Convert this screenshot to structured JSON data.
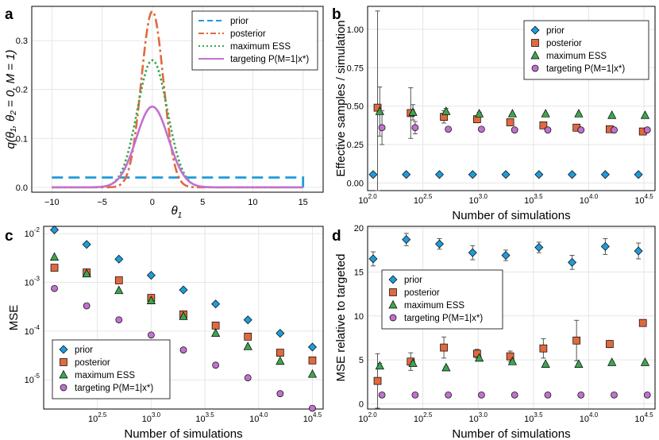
{
  "colors": {
    "prior": "#1f9bd9",
    "posterior": "#e0693f",
    "max_ess": "#3ca64f",
    "targeting": "#c171cf",
    "errorbar": "#555555"
  },
  "chart_data": [
    {
      "id": "a",
      "panel_label": "a",
      "type": "line",
      "xlabel": "θ",
      "xlabel_sub": "1",
      "ylabel": "q(θ₁, θ₂ = 0, M = 1)",
      "xlim": [
        -12,
        17
      ],
      "ylim": [
        -0.01,
        0.37
      ],
      "xticks": [
        -10,
        -5,
        0,
        5,
        10,
        15
      ],
      "xtick_labels": [
        "−10",
        "−5",
        "0",
        "5",
        "10",
        "15"
      ],
      "yticks": [
        0.0,
        0.1,
        0.2,
        0.3
      ],
      "ytick_labels": [
        "0.0",
        "0.1",
        "0.2",
        "0.3"
      ],
      "legend_position": "top-right",
      "series": [
        {
          "name": "prior",
          "shape": "uniform",
          "low": -10,
          "high": 15,
          "density": 0.02,
          "style": "dashed"
        },
        {
          "name": "posterior",
          "shape": "gaussian",
          "mean": 0,
          "sd": 1.1,
          "peak": 0.36,
          "style": "dashdot"
        },
        {
          "name": "maximum ESS",
          "shape": "gaussian",
          "mean": 0,
          "sd": 1.5,
          "peak": 0.26,
          "style": "dotted"
        },
        {
          "name": "targeting P(M=1|x*)",
          "shape": "gaussian",
          "mean": 0,
          "sd": 1.6,
          "peak": 0.165,
          "style": "solid"
        }
      ]
    },
    {
      "id": "b",
      "panel_label": "b",
      "type": "scatter",
      "xscale": "log10",
      "xlabel": "Number of simulations",
      "ylabel": "Effective samples / simulation",
      "xlim": [
        2.0,
        4.6
      ],
      "ylim": [
        -0.05,
        1.15
      ],
      "xticks": [
        2.0,
        2.5,
        3.0,
        3.5,
        4.0,
        4.5
      ],
      "xtick_labels": [
        "2.0",
        "2.5",
        "3.0",
        "3.5",
        "4.0",
        "4.5"
      ],
      "yticks": [
        0.0,
        0.25,
        0.5,
        0.75,
        1.0
      ],
      "ytick_labels": [
        "0.00",
        "0.25",
        "0.50",
        "0.75",
        "1.00"
      ],
      "legend_position": "top-right",
      "series": [
        {
          "name": "prior",
          "marker": "diamond",
          "x": [
            2.05,
            2.35,
            2.65,
            2.95,
            3.25,
            3.55,
            3.85,
            4.15,
            4.45
          ],
          "y": [
            0.055,
            0.055,
            0.055,
            0.055,
            0.055,
            0.055,
            0.055,
            0.055,
            0.055
          ],
          "err": [
            0,
            0,
            0,
            0,
            0,
            0,
            0,
            0,
            0
          ]
        },
        {
          "name": "posterior",
          "marker": "square",
          "x": [
            2.09,
            2.39,
            2.69,
            2.99,
            3.29,
            3.59,
            3.89,
            4.19,
            4.49
          ],
          "y": [
            0.49,
            0.455,
            0.43,
            0.415,
            0.395,
            0.375,
            0.36,
            0.35,
            0.335
          ],
          "err": [
            0.63,
            0.165,
            0.04,
            0.02,
            0.01,
            0.01,
            0.01,
            0.01,
            0.01
          ]
        },
        {
          "name": "maximum ESS",
          "marker": "triangle",
          "x": [
            2.11,
            2.41,
            2.71,
            3.01,
            3.31,
            3.61,
            3.91,
            4.21,
            4.51
          ],
          "y": [
            0.465,
            0.46,
            0.465,
            0.45,
            0.45,
            0.45,
            0.45,
            0.44,
            0.44
          ],
          "err": [
            0.16,
            0.05,
            0.02,
            0.01,
            0,
            0,
            0,
            0,
            0
          ]
        },
        {
          "name": "targeting P(M=1|x*)",
          "marker": "circle",
          "x": [
            2.13,
            2.43,
            2.73,
            3.03,
            3.33,
            3.63,
            3.93,
            4.23,
            4.53
          ],
          "y": [
            0.36,
            0.36,
            0.35,
            0.35,
            0.345,
            0.345,
            0.345,
            0.345,
            0.345
          ],
          "err": [
            0.11,
            0.04,
            0.01,
            0,
            0,
            0,
            0,
            0,
            0
          ]
        }
      ]
    },
    {
      "id": "c",
      "panel_label": "c",
      "type": "scatter",
      "xscale": "log10",
      "yscale": "log10",
      "xlabel": "Number of simulations",
      "ylabel": "MSE",
      "xlim": [
        2.0,
        4.6
      ],
      "ylim": [
        -5.6,
        -1.85
      ],
      "xticks": [
        2.5,
        3.0,
        3.5,
        4.0,
        4.5
      ],
      "xtick_labels": [
        "2.5",
        "3.0",
        "3.5",
        "4.0",
        "4.5"
      ],
      "yticks": [
        -5,
        -4,
        -3,
        -2
      ],
      "ytick_labels": [
        "-5",
        "-4",
        "-3",
        "-2"
      ],
      "legend_position": "bottom-left",
      "series": [
        {
          "name": "prior",
          "marker": "diamond",
          "x": [
            2.1,
            2.4,
            2.7,
            3.0,
            3.3,
            3.6,
            3.9,
            4.2,
            4.5
          ],
          "y": [
            0.012,
            0.006,
            0.003,
            0.0014,
            0.0007,
            0.00036,
            0.00017,
            9e-05,
            4.7e-05
          ]
        },
        {
          "name": "posterior",
          "marker": "square",
          "x": [
            2.1,
            2.4,
            2.7,
            3.0,
            3.3,
            3.6,
            3.9,
            4.2,
            4.5
          ],
          "y": [
            0.002,
            0.0016,
            0.0011,
            0.00048,
            0.00022,
            0.00013,
            7.7e-05,
            3.6e-05,
            2.5e-05
          ]
        },
        {
          "name": "maximum ESS",
          "marker": "triangle",
          "x": [
            2.1,
            2.4,
            2.7,
            3.0,
            3.3,
            3.6,
            3.9,
            4.2,
            4.5
          ],
          "y": [
            0.0033,
            0.0015,
            0.00068,
            0.00042,
            0.0002,
            9e-05,
            4.8e-05,
            2.4e-05,
            1.3e-05
          ]
        },
        {
          "name": "targeting P(M=1|x*)",
          "marker": "circle",
          "x": [
            2.1,
            2.4,
            2.7,
            3.0,
            3.3,
            3.6,
            3.9,
            4.2,
            4.5
          ],
          "y": [
            0.00075,
            0.00033,
            0.00017,
            8.3e-05,
            4.1e-05,
            2e-05,
            1.1e-05,
            5.2e-06,
            2.6e-06
          ]
        }
      ]
    },
    {
      "id": "d",
      "panel_label": "d",
      "type": "scatter",
      "xscale": "log10",
      "xlabel": "Number of simulations",
      "ylabel": "MSE relative to targeted",
      "xlim": [
        2.0,
        4.6
      ],
      "ylim": [
        -0.6,
        20.2
      ],
      "xticks": [
        2.0,
        2.5,
        3.0,
        3.5,
        4.0,
        4.5
      ],
      "xtick_labels": [
        "2.0",
        "2.5",
        "3.0",
        "3.5",
        "4.0",
        "4.5"
      ],
      "yticks": [
        0,
        5,
        10,
        15,
        20
      ],
      "ytick_labels": [
        "0",
        "5",
        "10",
        "15",
        "20"
      ],
      "legend_position": "middle-left",
      "series": [
        {
          "name": "prior",
          "marker": "diamond",
          "x": [
            2.05,
            2.35,
            2.65,
            2.95,
            3.25,
            3.55,
            3.85,
            4.15,
            4.45
          ],
          "y": [
            16.5,
            18.7,
            18.2,
            17.2,
            16.9,
            17.8,
            16.1,
            17.9,
            17.4
          ],
          "err": [
            0.8,
            0.7,
            0.6,
            0.8,
            0.6,
            0.6,
            0.8,
            0.9,
            0.9
          ]
        },
        {
          "name": "posterior",
          "marker": "square",
          "x": [
            2.09,
            2.39,
            2.69,
            2.99,
            3.29,
            3.59,
            3.89,
            4.19,
            4.49
          ],
          "y": [
            2.6,
            4.8,
            6.4,
            5.7,
            5.4,
            6.3,
            7.2,
            6.8,
            9.2
          ],
          "err": [
            3.1,
            1.0,
            1.2,
            0.5,
            0.6,
            1.1,
            2.3,
            0.4,
            0
          ]
        },
        {
          "name": "maximum ESS",
          "marker": "triangle",
          "x": [
            2.11,
            2.41,
            2.71,
            3.01,
            3.31,
            3.61,
            3.91,
            4.21,
            4.51
          ],
          "y": [
            4.3,
            4.6,
            4.1,
            5.2,
            4.8,
            4.5,
            4.5,
            4.7,
            4.7
          ],
          "err": [
            0.3,
            0.2,
            0.1,
            0.2,
            0.1,
            0.1,
            0.1,
            0.1,
            0.1
          ]
        },
        {
          "name": "targeting P(M=1|x*)",
          "marker": "circle",
          "x": [
            2.13,
            2.43,
            2.73,
            3.03,
            3.33,
            3.63,
            3.93,
            4.23,
            4.53
          ],
          "y": [
            1,
            1,
            1,
            1,
            1,
            1,
            1,
            1,
            1
          ],
          "err": [
            0,
            0,
            0,
            0,
            0,
            0,
            0,
            0,
            0
          ]
        }
      ]
    }
  ]
}
